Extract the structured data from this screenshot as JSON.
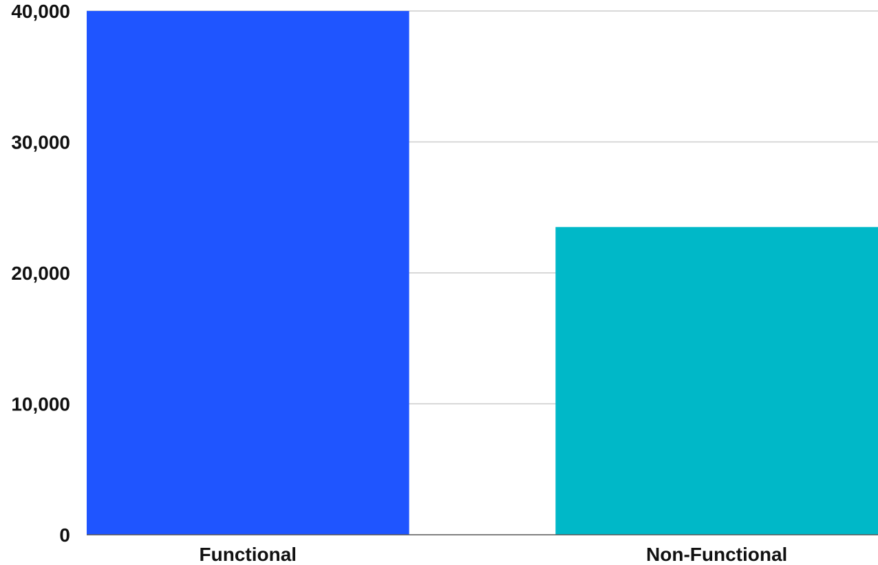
{
  "chart_data": {
    "type": "bar",
    "title": "",
    "xlabel": "",
    "ylabel": "",
    "categories": [
      "Functional",
      "Non-Functional"
    ],
    "values": [
      40000,
      23500
    ],
    "ylim": [
      0,
      40000
    ],
    "yticks": [
      0,
      10000,
      20000,
      30000,
      40000
    ],
    "ytick_labels": [
      "0",
      "10,000",
      "20,000",
      "30,000",
      "40,000"
    ],
    "colors": [
      "#1f55ff",
      "#00b8c8"
    ],
    "grid": true,
    "grid_color": "#cccccc",
    "legend": "none"
  }
}
